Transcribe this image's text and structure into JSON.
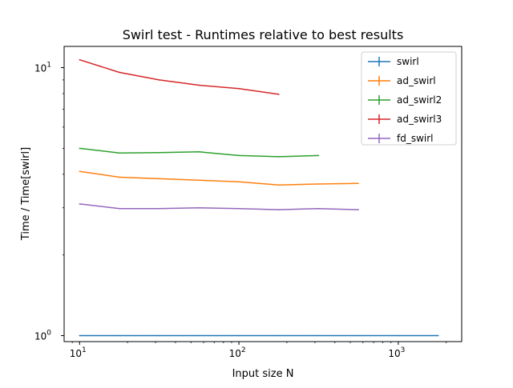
{
  "chart_data": {
    "type": "line",
    "title": "Swirl test - Runtimes relative to best results",
    "xlabel": "Input size N",
    "ylabel": "Time / Time[swirl]",
    "x_scale": "log",
    "y_scale": "log",
    "xlim": [
      8,
      2500
    ],
    "ylim": [
      0.95,
      12
    ],
    "x_ticks": [
      {
        "value": 10,
        "base": "10",
        "exp": "1"
      },
      {
        "value": 100,
        "base": "10",
        "exp": "2"
      },
      {
        "value": 1000,
        "base": "10",
        "exp": "3"
      }
    ],
    "y_ticks": [
      {
        "value": 1,
        "base": "10",
        "exp": "0"
      },
      {
        "value": 10,
        "base": "10",
        "exp": "1"
      }
    ],
    "legend_position": "top-right",
    "grid": false,
    "series": [
      {
        "name": "swirl",
        "color": "#1f77b4",
        "x": [
          10,
          17.8,
          31.6,
          56.2,
          100,
          178,
          316,
          562,
          1000,
          1780
        ],
        "y": [
          1,
          1,
          1,
          1,
          1,
          1,
          1,
          1,
          1,
          1
        ]
      },
      {
        "name": "ad_swirl",
        "color": "#ff7f0e",
        "x": [
          10,
          17.8,
          31.6,
          56.2,
          100,
          178,
          316,
          562
        ],
        "y": [
          4.1,
          3.9,
          3.85,
          3.8,
          3.75,
          3.65,
          3.68,
          3.7
        ]
      },
      {
        "name": "ad_swirl2",
        "color": "#2ca02c",
        "x": [
          10,
          17.8,
          31.6,
          56.2,
          100,
          178,
          316
        ],
        "y": [
          5.0,
          4.8,
          4.82,
          4.85,
          4.7,
          4.65,
          4.7
        ]
      },
      {
        "name": "ad_swirl3",
        "color": "#d62728",
        "x": [
          10,
          17.8,
          31.6,
          56.2,
          100,
          178
        ],
        "y": [
          10.7,
          9.6,
          9.0,
          8.6,
          8.35,
          7.95
        ]
      },
      {
        "name": "fd_swirl",
        "color": "#9467bd",
        "x": [
          10,
          17.8,
          31.6,
          56.2,
          100,
          178,
          316,
          562
        ],
        "y": [
          3.1,
          2.98,
          2.98,
          3.0,
          2.98,
          2.95,
          2.98,
          2.95
        ]
      }
    ]
  }
}
